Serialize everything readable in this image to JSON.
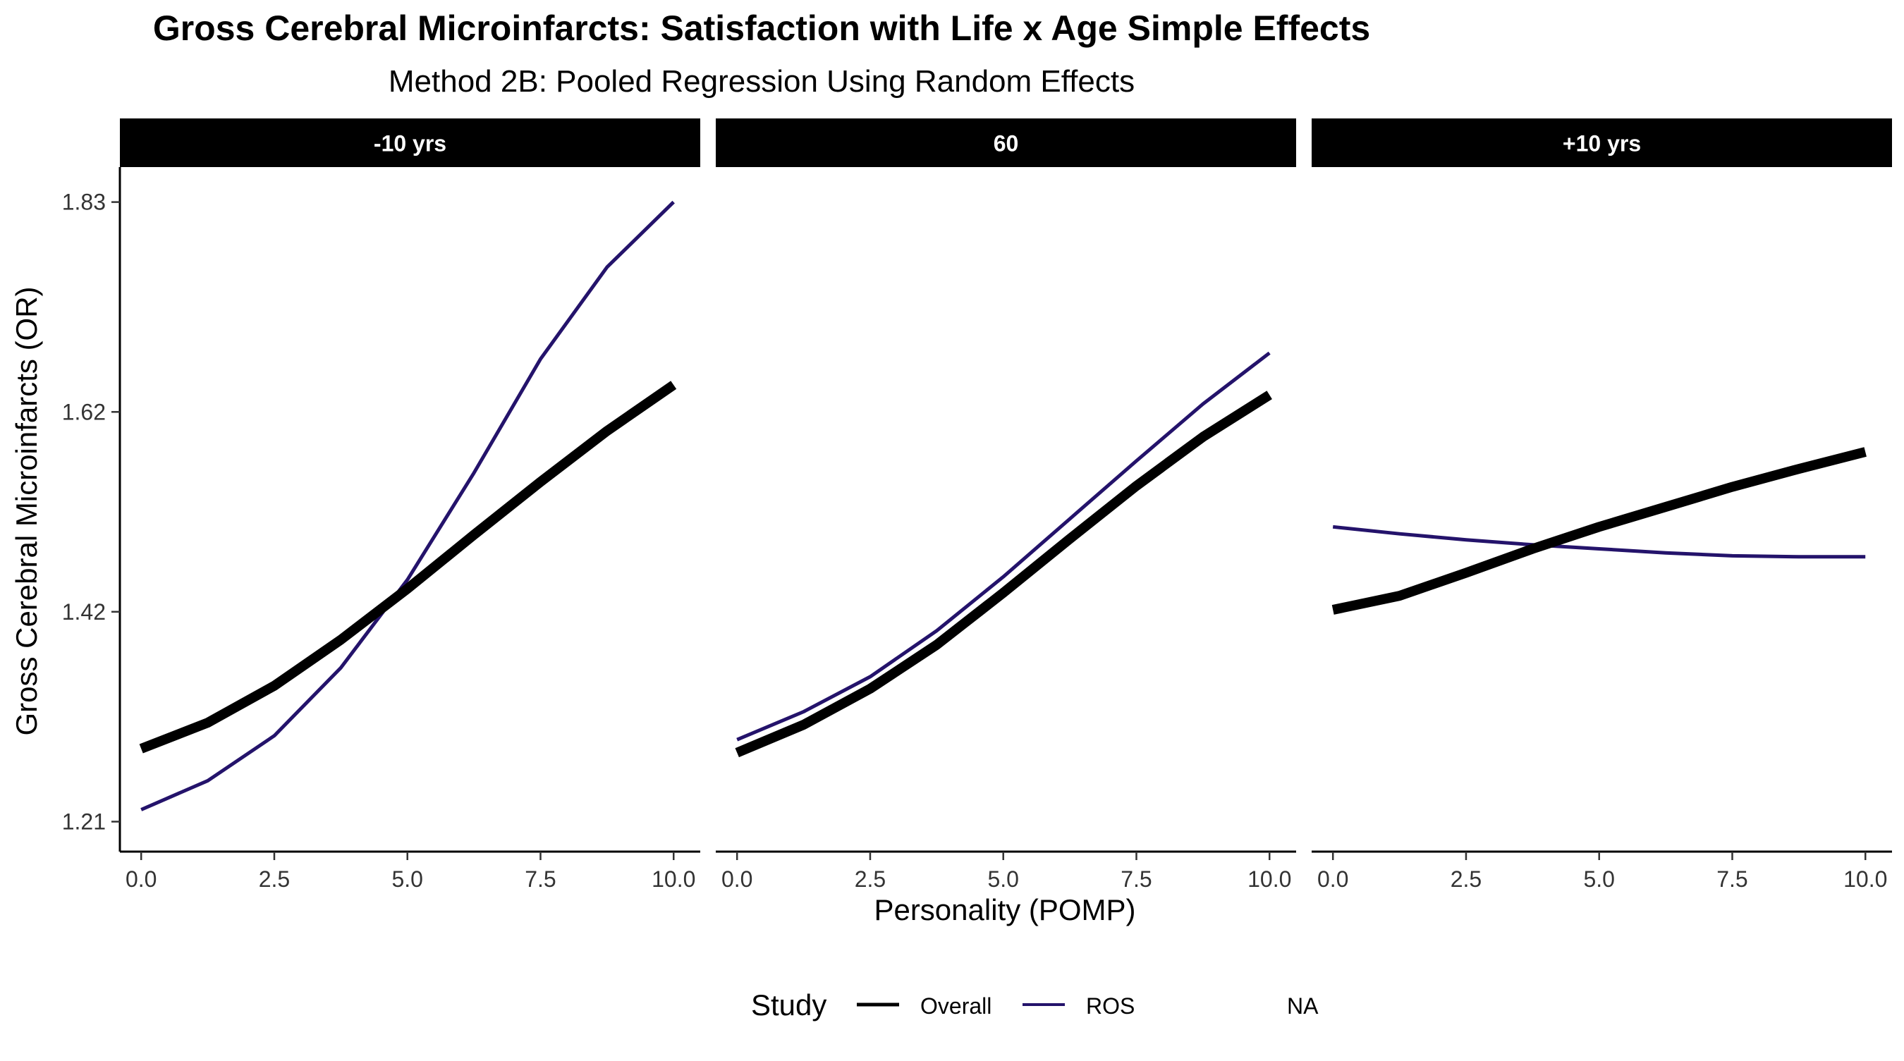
{
  "chart_data": {
    "type": "line",
    "title": "Gross Cerebral Microinfarcts: Satisfaction with Life x Age Simple Effects",
    "subtitle": "Method 2B: Pooled Regression Using Random Effects",
    "xlabel": "Personality (POMP)",
    "ylabel": "Gross Cerebral Microinfarcts (OR)",
    "xlim": [
      -0.4,
      10.5
    ],
    "ylim": [
      1.18,
      1.865
    ],
    "x_ticks": [
      0,
      2.5,
      5,
      7.5,
      10
    ],
    "x_tick_labels": [
      "0.0",
      "2.5",
      "5.0",
      "7.5",
      "10.0"
    ],
    "y_ticks": [
      1.21,
      1.42,
      1.62,
      1.83
    ],
    "y_tick_labels": [
      "1.21",
      "1.42",
      "1.62",
      "1.83"
    ],
    "grid": false,
    "legend": {
      "title": "Study",
      "position": "bottom",
      "entries": [
        {
          "label": "Overall",
          "color": "#000000"
        },
        {
          "label": "ROS",
          "color": "#24136b"
        },
        {
          "label": "NA",
          "color": null
        }
      ]
    },
    "panels": [
      {
        "label": "-10 yrs",
        "x": [
          0,
          1.25,
          2.5,
          3.75,
          5,
          6.25,
          7.5,
          8.75,
          10
        ],
        "series": [
          {
            "name": "Overall",
            "color": "#000000",
            "values": [
              1.283,
              1.309,
              1.346,
              1.392,
              1.443,
              1.497,
              1.55,
              1.601,
              1.647
            ]
          },
          {
            "name": "ROS",
            "color": "#24136b",
            "values": [
              1.222,
              1.251,
              1.296,
              1.364,
              1.452,
              1.559,
              1.673,
              1.765,
              1.83
            ]
          }
        ]
      },
      {
        "label": "60",
        "x": [
          0,
          1.25,
          2.5,
          3.75,
          5,
          6.25,
          7.5,
          8.75,
          10
        ],
        "series": [
          {
            "name": "Overall",
            "color": "#000000",
            "values": [
              1.279,
              1.307,
              1.343,
              1.387,
              1.439,
              1.493,
              1.546,
              1.595,
              1.637
            ]
          },
          {
            "name": "ROS",
            "color": "#24136b",
            "values": [
              1.292,
              1.32,
              1.355,
              1.401,
              1.455,
              1.513,
              1.571,
              1.628,
              1.679
            ]
          }
        ]
      },
      {
        "label": "+10 yrs",
        "x": [
          0,
          1.25,
          2.5,
          3.75,
          5,
          6.25,
          7.5,
          8.75,
          10
        ],
        "series": [
          {
            "name": "Overall",
            "color": "#000000",
            "values": [
              1.422,
              1.436,
              1.459,
              1.483,
              1.505,
              1.525,
              1.545,
              1.563,
              1.58
            ]
          },
          {
            "name": "ROS",
            "color": "#24136b",
            "values": [
              1.505,
              1.498,
              1.492,
              1.487,
              1.483,
              1.479,
              1.476,
              1.475,
              1.475
            ]
          }
        ]
      }
    ]
  }
}
